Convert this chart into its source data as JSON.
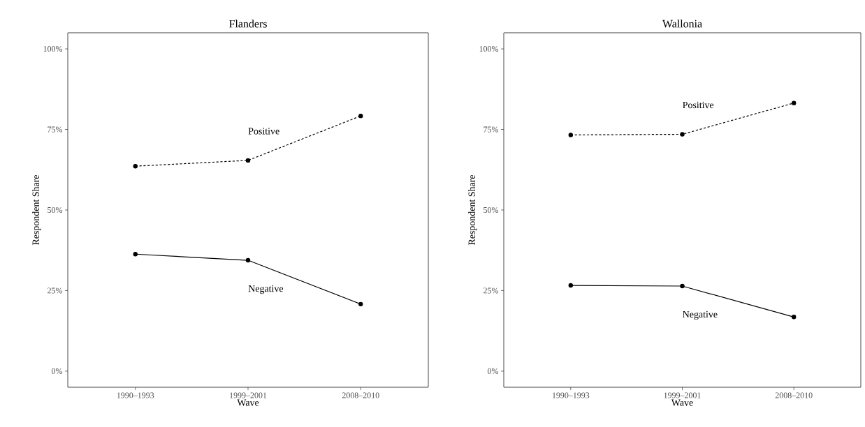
{
  "chart_data": [
    {
      "type": "line",
      "title": "Flanders",
      "xlabel": "Wave",
      "ylabel": "Respondent Share",
      "categories": [
        "1990–1993",
        "1999–2001",
        "2008–2010"
      ],
      "series": [
        {
          "name": "Positive",
          "color": "#000000",
          "line_style": "dashed",
          "values": [
            63.6,
            65.4,
            79.2
          ]
        },
        {
          "name": "Negative",
          "color": "#000000",
          "line_style": "solid",
          "values": [
            36.3,
            34.4,
            20.8
          ]
        }
      ],
      "ylim": [
        -5,
        105
      ],
      "yticks": [
        {
          "value": 0,
          "label": "0%"
        },
        {
          "value": 25,
          "label": "25%"
        },
        {
          "value": 50,
          "label": "50%"
        },
        {
          "value": 75,
          "label": "75%"
        },
        {
          "value": 100,
          "label": "100%"
        }
      ],
      "marker": "circle",
      "grid": false
    },
    {
      "type": "line",
      "title": "Wallonia",
      "xlabel": "Wave",
      "ylabel": "Respondent Share",
      "categories": [
        "1990–1993",
        "1999–2001",
        "2008–2010"
      ],
      "series": [
        {
          "name": "Positive",
          "color": "#000000",
          "line_style": "dashed",
          "values": [
            73.3,
            73.5,
            83.2
          ]
        },
        {
          "name": "Negative",
          "color": "#000000",
          "line_style": "solid",
          "values": [
            26.6,
            26.4,
            16.8
          ]
        }
      ],
      "ylim": [
        -5,
        105
      ],
      "yticks": [
        {
          "value": 0,
          "label": "0%"
        },
        {
          "value": 25,
          "label": "25%"
        },
        {
          "value": 50,
          "label": "50%"
        },
        {
          "value": 75,
          "label": "75%"
        },
        {
          "value": 100,
          "label": "100%"
        }
      ],
      "marker": "circle",
      "grid": false
    }
  ]
}
